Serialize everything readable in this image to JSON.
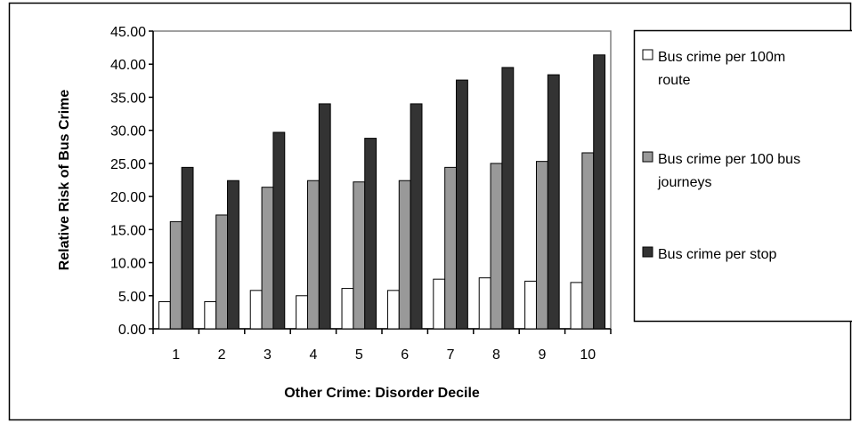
{
  "chart_data": {
    "type": "bar",
    "title": "",
    "xlabel": "Other Crime: Disorder Decile",
    "ylabel": "Relative Risk of Bus Crime",
    "categories": [
      "1",
      "2",
      "3",
      "4",
      "5",
      "6",
      "7",
      "8",
      "9",
      "10"
    ],
    "ylim": [
      0,
      45
    ],
    "yticks": [
      "0.00",
      "5.00",
      "10.00",
      "15.00",
      "20.00",
      "25.00",
      "30.00",
      "35.00",
      "40.00",
      "45.00"
    ],
    "grid": false,
    "legend_position": "right",
    "series": [
      {
        "name": "Bus crime per 100m route",
        "legend_lines": [
          "Bus crime per 100m",
          "route"
        ],
        "color": "#ffffff",
        "values": [
          4.1,
          4.1,
          5.8,
          5.0,
          6.1,
          5.8,
          7.5,
          7.7,
          7.2,
          7.0
        ]
      },
      {
        "name": "Bus crime per 100 bus journeys",
        "legend_lines": [
          "Bus crime per 100 bus",
          "journeys"
        ],
        "color": "#999999",
        "values": [
          16.2,
          17.2,
          21.4,
          22.4,
          22.2,
          22.4,
          24.4,
          25.0,
          25.3,
          26.6
        ]
      },
      {
        "name": "Bus crime per stop",
        "legend_lines": [
          "Bus crime per stop"
        ],
        "color": "#333333",
        "values": [
          24.4,
          22.4,
          29.7,
          34.0,
          28.8,
          34.0,
          37.6,
          39.5,
          38.4,
          41.4
        ]
      }
    ]
  }
}
